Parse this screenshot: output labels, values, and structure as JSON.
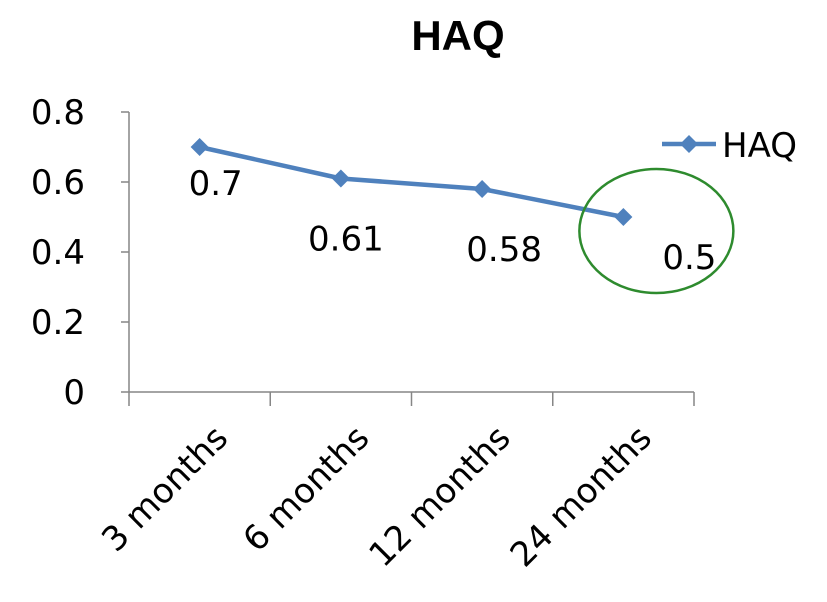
{
  "chart_data": {
    "type": "line",
    "title": "HAQ",
    "categories": [
      "3 months",
      "6 months",
      "12 months",
      "24 months"
    ],
    "series": [
      {
        "name": "HAQ",
        "values": [
          0.7,
          0.61,
          0.58,
          0.5
        ],
        "color": "#4F81BD"
      }
    ],
    "data_labels": [
      "0.7",
      "0.61",
      "0.58",
      "0.5"
    ],
    "yticks": [
      "0",
      "0.2",
      "0.4",
      "0.6",
      "0.8"
    ],
    "ylim": [
      0,
      0.8
    ],
    "grid": false,
    "legend": "right",
    "annotation": {
      "type": "ellipse",
      "target_category": "24 months",
      "color": "#2E8B2E"
    }
  }
}
